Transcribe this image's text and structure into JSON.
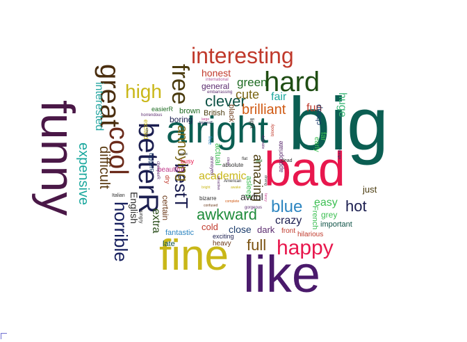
{
  "words": [
    {
      "text": "big",
      "color": "#0b5e52"
    },
    {
      "text": "alright",
      "color": "#0b5e52"
    },
    {
      "text": "bad",
      "color": "#e8174d"
    },
    {
      "text": "like",
      "color": "#4a1a6b"
    },
    {
      "text": "fine",
      "color": "#c9b718"
    },
    {
      "text": "funny",
      "color": "#4a1847"
    },
    {
      "text": "interesting",
      "color": "#c0392b"
    },
    {
      "text": "hard",
      "color": "#1f4d13"
    },
    {
      "text": "great",
      "color": "#4a2e0f"
    },
    {
      "text": "cool",
      "color": "#6b2a1a"
    },
    {
      "text": "betterR",
      "color": "#1b1e50"
    },
    {
      "text": "free",
      "color": "#4a3b0e"
    },
    {
      "text": "high",
      "color": "#c9b718"
    },
    {
      "text": "happy",
      "color": "#e8174d"
    },
    {
      "text": "horrible",
      "color": "#141d5c"
    },
    {
      "text": "bestT",
      "color": "#1b1e50"
    },
    {
      "text": "expensive",
      "color": "#19a79d"
    },
    {
      "text": "difficult",
      "color": "#5a3a10"
    },
    {
      "text": "interested",
      "color": "#24a5a0"
    },
    {
      "text": "annoying",
      "color": "#7a6512"
    },
    {
      "text": "clever",
      "color": "#0e5246"
    },
    {
      "text": "brilliant",
      "color": "#d05a13"
    },
    {
      "text": "amazing",
      "color": "#4a3b0e"
    },
    {
      "text": "awkward",
      "color": "#1e8b3a"
    },
    {
      "text": "blue",
      "color": "#2e86c1"
    },
    {
      "text": "hot",
      "color": "#1b1e50"
    },
    {
      "text": "full",
      "color": "#7a5212"
    },
    {
      "text": "cute",
      "color": "#7a6512"
    },
    {
      "text": "green",
      "color": "#1e6b22"
    },
    {
      "text": "fair",
      "color": "#1ba79d"
    },
    {
      "text": "fun",
      "color": "#c0392b"
    },
    {
      "text": "huge",
      "color": "#3fb87a"
    },
    {
      "text": "English",
      "color": "#2d2d2d"
    },
    {
      "text": "extra",
      "color": "#2a4d1a"
    },
    {
      "text": "academic",
      "color": "#c9b718"
    },
    {
      "text": "easy",
      "color": "#3cbf52"
    },
    {
      "text": "crazy",
      "color": "#1b1e50"
    },
    {
      "text": "honest",
      "color": "#c0392b"
    },
    {
      "text": "general",
      "color": "#5b2c6f"
    },
    {
      "text": "boring",
      "color": "#1b1e50"
    },
    {
      "text": "awful",
      "color": "#2d2d2d"
    },
    {
      "text": "close",
      "color": "#1b3c6b"
    },
    {
      "text": "cold",
      "color": "#c0392b"
    },
    {
      "text": "dark",
      "color": "#5b2c6f"
    },
    {
      "text": "just",
      "color": "#4a3b0e"
    },
    {
      "text": "grey",
      "color": "#3cbf52"
    },
    {
      "text": "important",
      "color": "#0e5246"
    },
    {
      "text": "certain",
      "color": "#6b3a1a"
    },
    {
      "text": "fantastic",
      "color": "#2e86c1"
    },
    {
      "text": "late",
      "color": "#0e5246"
    },
    {
      "text": "heavy",
      "color": "#6b3a1a"
    },
    {
      "text": "exciting",
      "color": "#1b1e50"
    },
    {
      "text": "front",
      "color": "#c0392b"
    },
    {
      "text": "hilarious",
      "color": "#c0392b"
    },
    {
      "text": "French",
      "color": "#3cbf52"
    },
    {
      "text": "far",
      "color": "#3cbf52"
    },
    {
      "text": "early",
      "color": "#3cbf52"
    },
    {
      "text": "cheap",
      "color": "#1b3c6b"
    },
    {
      "text": "black",
      "color": "#6b3a1a"
    },
    {
      "text": "British",
      "color": "#4a3b0e"
    },
    {
      "text": "brown",
      "color": "#1e6b22"
    },
    {
      "text": "easierR",
      "color": "#1e6b22"
    },
    {
      "text": "busy",
      "color": "#e8174d"
    },
    {
      "text": "beautiful",
      "color": "#c0398b"
    },
    {
      "text": "dry",
      "color": "#c0392b"
    },
    {
      "text": "biggerR",
      "color": "#1b3c6b"
    },
    {
      "text": "actual",
      "color": "#3cbf52"
    },
    {
      "text": "asleep",
      "color": "#3cbf52"
    },
    {
      "text": "bizarre",
      "color": "#2d2d2d"
    },
    {
      "text": "absolute",
      "color": "#2d2d2d"
    },
    {
      "text": "embarrassing",
      "color": "#5b2c6f"
    },
    {
      "text": "international",
      "color": "#b05a9b"
    },
    {
      "text": "excited",
      "color": "#c9b718"
    },
    {
      "text": "horrendous",
      "color": "#5b2c6f"
    },
    {
      "text": "hungry",
      "color": "#2d2d2d"
    },
    {
      "text": "Italian",
      "color": "#2d2d2d"
    },
    {
      "text": "American",
      "color": "#2d2d2d"
    },
    {
      "text": "attractive",
      "color": "#5b2c6f"
    },
    {
      "text": "awake",
      "color": "#c9b718"
    },
    {
      "text": "bright",
      "color": "#c9b718"
    },
    {
      "text": "complete",
      "color": "#d05a13"
    },
    {
      "text": "confused",
      "color": "#6b3a1a"
    },
    {
      "text": "gorgeous",
      "color": "#5b2c6f"
    },
    {
      "text": "biggestT",
      "color": "#1b1e50"
    },
    {
      "text": "large",
      "color": "#c0398b"
    },
    {
      "text": "light",
      "color": "#2d2d2d"
    },
    {
      "text": "desirable",
      "color": "#5b2c6f"
    },
    {
      "text": "bloody",
      "color": "#c0392b"
    },
    {
      "text": "appropriate",
      "color": "#5b2c6f"
    },
    {
      "text": "foreign",
      "color": "#1b3c6b"
    },
    {
      "text": "dead",
      "color": "#2d2d2d"
    },
    {
      "text": "driving",
      "color": "#2d2d2d"
    },
    {
      "text": "fancy",
      "color": "#c0398b"
    },
    {
      "text": "flat",
      "color": "#2d2d2d"
    },
    {
      "text": "glad",
      "color": "#1e6b22"
    },
    {
      "text": "clean",
      "color": "#5b2c6f"
    },
    {
      "text": "free",
      "color": "#2e86c1"
    },
    {
      "text": "annoyed",
      "color": "#5b2c6f"
    },
    {
      "text": "gothic",
      "color": "#2d2d2d"
    },
    {
      "text": "cheaperR",
      "color": "#5b2c6f"
    },
    {
      "text": "empty",
      "color": "#2d2d2d"
    }
  ]
}
